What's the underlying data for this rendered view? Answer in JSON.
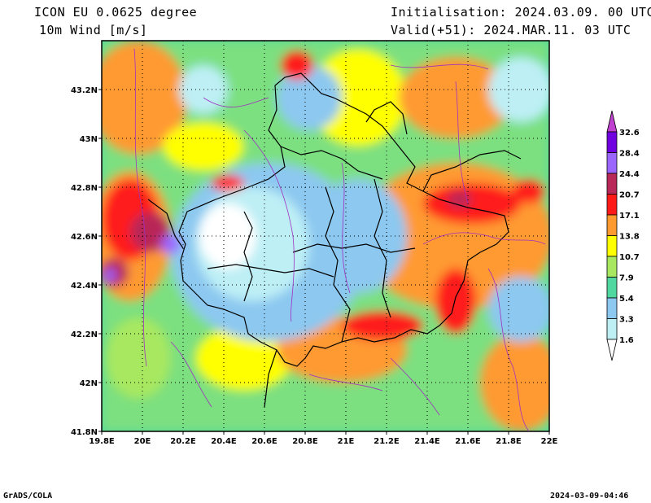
{
  "header": {
    "model": "ICON EU 0.0625 degree",
    "field": "10m Wind [m/s]",
    "init": "Initialisation: 2024.03.09. 00 UTC",
    "valid": "Valid(+51): 2024.MAR.11. 03 UTC"
  },
  "footer": {
    "credit": "GrADS/COLA",
    "timestamp": "2024-03-09-04:46"
  },
  "map": {
    "x_ticks": [
      "19.8E",
      "20E",
      "20.2E",
      "20.4E",
      "20.6E",
      "20.8E",
      "21E",
      "21.2E",
      "21.4E",
      "21.6E",
      "21.8E",
      "22E"
    ],
    "y_ticks": [
      "43.2N",
      "43N",
      "42.8N",
      "42.6N",
      "42.4N",
      "42.2N",
      "42N",
      "41.8N"
    ],
    "lon_range": [
      19.8,
      22.0
    ],
    "lat_range": [
      41.8,
      43.4
    ]
  },
  "colorbar": {
    "labels": [
      "1.6",
      "3.3",
      "5.4",
      "7.9",
      "10.7",
      "13.8",
      "17.1",
      "20.7",
      "24.4",
      "28.4",
      "32.6"
    ],
    "colors": [
      "#ffffff",
      "#bdeff5",
      "#8cc8f0",
      "#50d8a0",
      "#a8e860",
      "#ffff00",
      "#ff9a30",
      "#ff1a1a",
      "#b82858",
      "#9a66ff",
      "#7000e0",
      "#c040d0"
    ]
  }
}
